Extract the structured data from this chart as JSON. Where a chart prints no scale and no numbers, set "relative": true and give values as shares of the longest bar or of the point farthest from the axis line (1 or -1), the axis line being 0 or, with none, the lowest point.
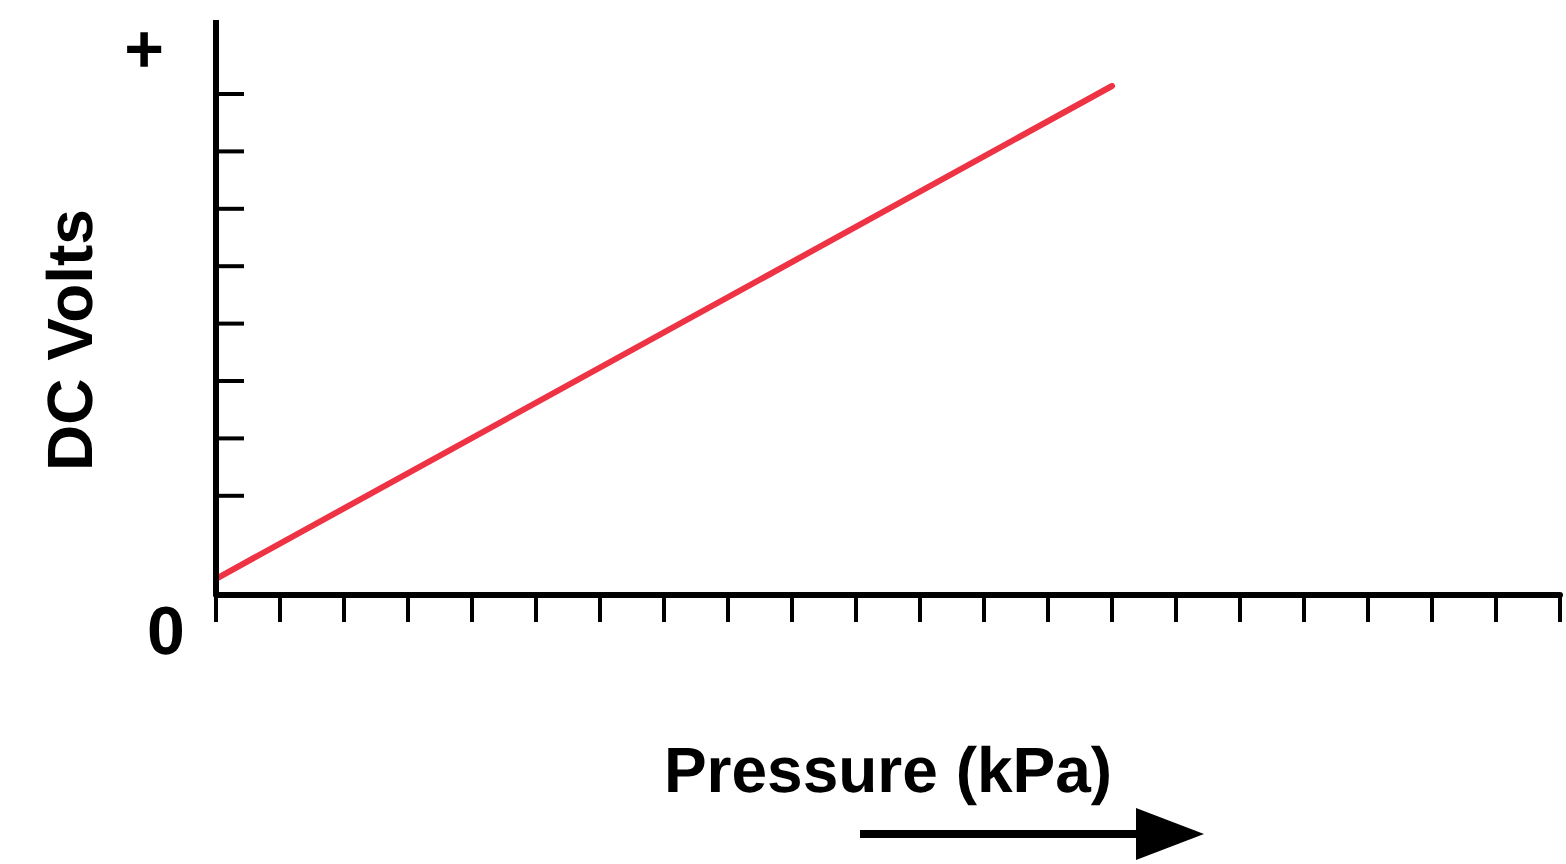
{
  "chart_data": {
    "type": "line",
    "relative": true,
    "xlabel": "Pressure (kPa)",
    "ylabel": "DC Volts",
    "categories": [
      null,
      null,
      null,
      null,
      null,
      null,
      null,
      null,
      null,
      null,
      null,
      null,
      null,
      null,
      null,
      null,
      null,
      null,
      null,
      null,
      null,
      null
    ],
    "values": [
      0.03,
      null,
      null,
      null,
      null,
      null,
      null,
      null,
      null,
      null,
      null,
      null,
      null,
      null,
      1,
      null,
      null,
      null,
      null,
      null,
      null,
      null
    ],
    "color": "#ee3344",
    "marker": "none",
    "line_style": "solid",
    "annotations": [
      "0",
      "+"
    ]
  }
}
